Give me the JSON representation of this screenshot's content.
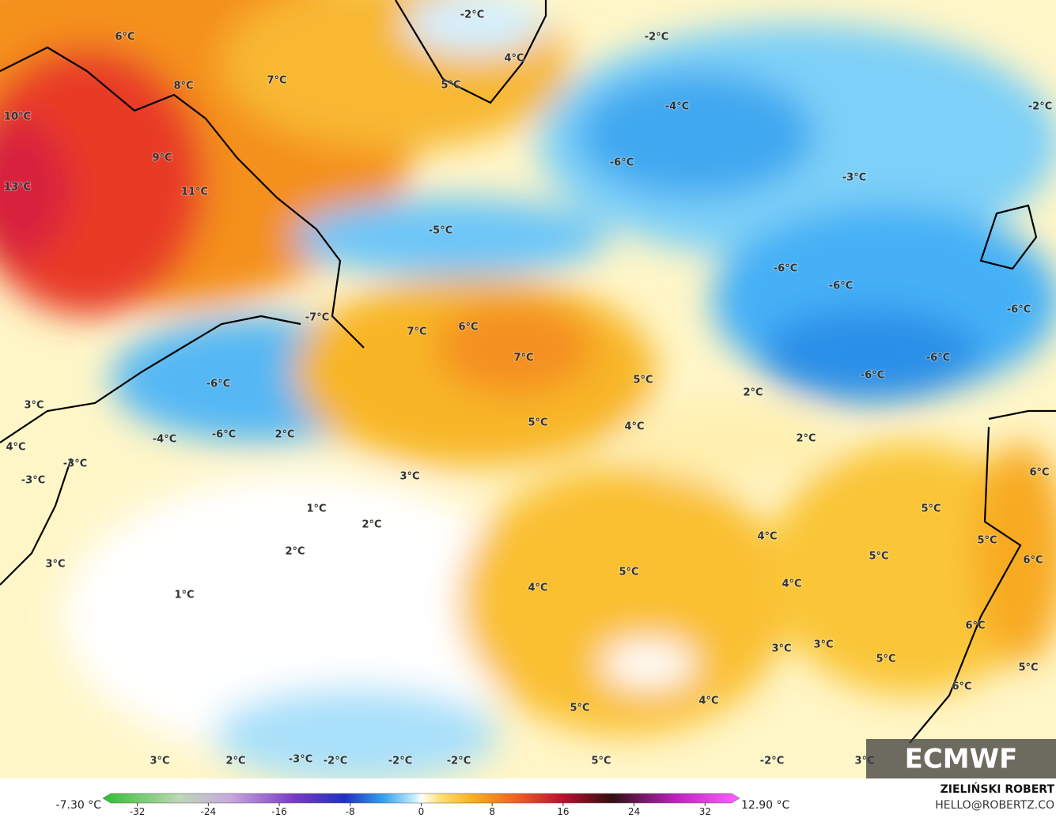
{
  "map": {
    "labels": [
      "6°C",
      "8°C",
      "7°C",
      "10°C",
      "9°C",
      "13°C",
      "11°C",
      "-2°C",
      "-2°C",
      "4°C",
      "5°C",
      "-4°C",
      "-2°C",
      "-6°C",
      "-3°C",
      "-5°C",
      "-6°C",
      "-6°C",
      "-6°C",
      "-7°C",
      "7°C",
      "6°C",
      "7°C",
      "-6°C",
      "-6°C",
      "-6°C",
      "5°C",
      "2°C",
      "3°C",
      "5°C",
      "4°C",
      "2°C",
      "-4°C",
      "-6°C",
      "2°C",
      "4°C",
      "-3°C",
      "6°C",
      "-3°C",
      "3°C",
      "1°C",
      "5°C",
      "2°C",
      "4°C",
      "5°C",
      "2°C",
      "5°C",
      "6°C",
      "3°C",
      "5°C",
      "4°C",
      "4°C",
      "1°C",
      "6°C",
      "3°C",
      "3°C",
      "5°C",
      "5°C",
      "6°C",
      "4°C",
      "5°C",
      "3°C",
      "2°C",
      "-3°C",
      "-2°C",
      "-2°C",
      "-2°C",
      "5°C",
      "-2°C",
      "3°C"
    ],
    "logo": "ECMWF"
  },
  "colorbar": {
    "min_label": "-7.30 °C",
    "max_label": "12.90 °C",
    "lim": [
      -35,
      35
    ],
    "ticks": [
      -32,
      -24,
      -16,
      -8,
      0,
      8,
      16,
      24,
      32
    ]
  },
  "credit": {
    "author": "ZIELIŃSKI ROBERT",
    "email": "HELLO@ROBERTZ.CO"
  }
}
